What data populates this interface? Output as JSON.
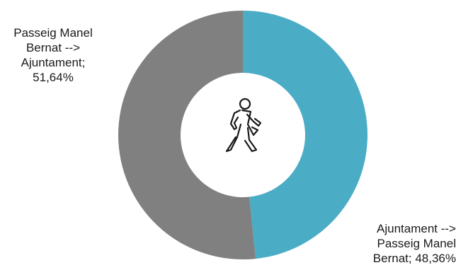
{
  "chart_data": {
    "type": "pie",
    "variant": "donut",
    "categories": [
      "Passeig Manel Bernat --> Ajuntament",
      "Ajuntament --> Passeig Manel Bernat"
    ],
    "values": [
      51.64,
      48.36
    ],
    "unit": "%",
    "colors": [
      "#808080",
      "#4bacc6"
    ],
    "center_icon": "pedestrian-walking-icon",
    "data_labels": [
      {
        "lines": [
          "Passeig Manel",
          "Bernat -->",
          "Ajuntament;",
          "51,64%"
        ]
      },
      {
        "lines": [
          "Ajuntament  -->",
          "Passeig Manel",
          "Bernat; 48,36%"
        ]
      }
    ]
  }
}
